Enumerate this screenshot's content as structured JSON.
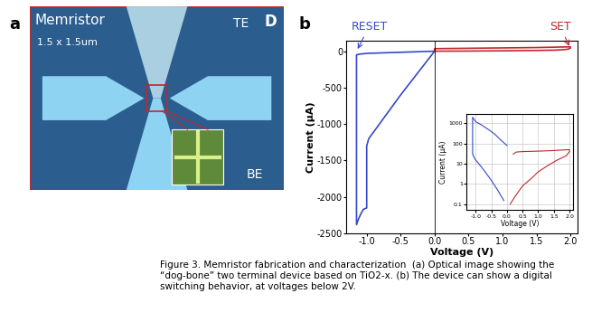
{
  "panel_a": {
    "label": "a",
    "title": "Memristor",
    "size": "1.5 x 1.5um",
    "top_electrode": "TE",
    "bottom_electrode": "BE",
    "corner_mark": "D"
  },
  "panel_b_label": "b",
  "chart_data": [
    {
      "type": "line",
      "xlabel": "Voltage (V)",
      "ylabel": "Current (µA)",
      "xlim": [
        -1.3,
        2.1
      ],
      "ylim": [
        -2500,
        150
      ],
      "xticks": [
        -1.0,
        -0.5,
        0.0,
        0.5,
        1.0,
        1.5,
        2.0
      ],
      "yticks": [
        0,
        -500,
        -1000,
        -1500,
        -2000,
        -2500
      ],
      "grid": false,
      "series": [
        {
          "name": "RESET",
          "color": "#3548c8",
          "x": [
            0.0,
            -0.5,
            -1.0,
            -1.1,
            -1.15,
            -1.15,
            -1.12,
            -1.08,
            -1.05,
            -1.0,
            -1.0,
            -0.97,
            -0.5,
            0.0
          ],
          "values": [
            0,
            -15,
            -30,
            -40,
            -50,
            -2380,
            -2300,
            -2220,
            -2170,
            -2150,
            -1300,
            -1200,
            -600,
            0
          ]
        },
        {
          "name": "SET",
          "color": "#c0282d",
          "x": [
            0.0,
            0.5,
            1.0,
            1.5,
            1.8,
            1.95,
            2.0,
            2.0,
            1.5,
            1.0,
            0.5,
            0.0,
            0.0
          ],
          "values": [
            0,
            2,
            5,
            10,
            15,
            25,
            40,
            60,
            50,
            45,
            40,
            35,
            0
          ]
        }
      ]
    },
    {
      "type": "line",
      "log": "y",
      "xlabel": "Voltage (V)",
      "ylabel": "Current (µA)",
      "xlim": [
        -1.3,
        2.1
      ],
      "ylim": [
        0.05,
        3000
      ],
      "xticks": [
        -1.0,
        -0.5,
        0.0,
        0.5,
        1.0,
        1.5,
        2.0
      ],
      "yticks": [
        0.1,
        1,
        10,
        100,
        1000
      ],
      "grid": true,
      "series": [
        {
          "color": "#3548c8",
          "x": [
            -0.1,
            -0.3,
            -0.5,
            -0.7,
            -0.9,
            -1.0,
            -1.05,
            -1.1,
            -1.1,
            -1.0,
            -0.8,
            -0.6,
            -0.4,
            -0.2,
            0.0
          ],
          "values": [
            0.15,
            0.5,
            1.5,
            4,
            10,
            15,
            20,
            30,
            2000,
            1200,
            800,
            500,
            300,
            150,
            80
          ]
        },
        {
          "color": "#c0282d",
          "x": [
            0.1,
            0.3,
            0.5,
            0.8,
            1.0,
            1.3,
            1.6,
            1.9,
            2.0,
            2.0,
            1.5,
            1.0,
            0.5,
            0.3,
            0.2
          ],
          "values": [
            0.1,
            0.3,
            0.8,
            2,
            4,
            8,
            15,
            25,
            40,
            50,
            45,
            42,
            40,
            38,
            30
          ]
        }
      ]
    }
  ],
  "caption": "Figure 3. Memristor fabrication and characterization  (a) Optical image showing the “dog-bone” two terminal device based on TiO2-x. (b) The device can show a digital switching behavior, at voltages below 2V."
}
